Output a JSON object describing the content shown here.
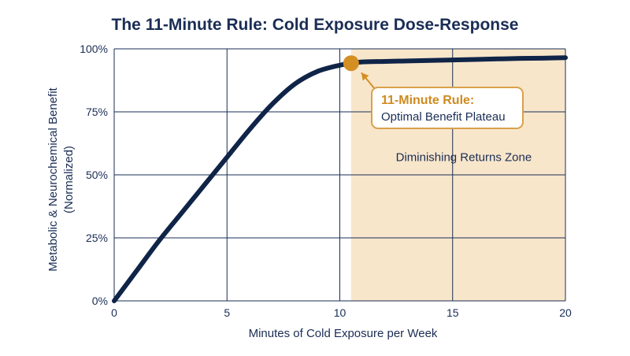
{
  "chart_data": {
    "type": "line",
    "title": "The 11-Minute Rule: Cold Exposure Dose-Response",
    "xlabel": "Minutes of Cold Exposure per Week",
    "ylabel_line1": "Metabolic & Neurochemical Benefit",
    "ylabel_line2": "(Normalized)",
    "xlim": [
      0,
      20
    ],
    "ylim": [
      0,
      100
    ],
    "x_ticks": [
      0,
      5,
      10,
      15,
      20
    ],
    "y_ticks": [
      0,
      25,
      50,
      75,
      100
    ],
    "x_tick_labels": [
      "0",
      "5",
      "10",
      "15",
      "20"
    ],
    "y_tick_labels": [
      "0%",
      "25%",
      "50%",
      "75%",
      "100%"
    ],
    "grid": true,
    "series": [
      {
        "x": [
          0,
          1,
          2,
          3,
          4,
          5,
          6,
          7,
          8,
          9,
          10,
          10.5,
          11,
          12,
          13,
          14,
          15,
          16,
          17,
          18,
          19,
          20
        ],
        "y": [
          0,
          12,
          24,
          35,
          46,
          57,
          68,
          78,
          86,
          91,
          93.5,
          94.3,
          94.8,
          95.0,
          95.2,
          95.4,
          95.6,
          95.8,
          96.0,
          96.2,
          96.3,
          96.5
        ]
      }
    ],
    "shaded_region": {
      "x_start": 10.5,
      "x_end": 20,
      "label": "Diminishing Returns Zone"
    },
    "highlight_point": {
      "x": 10.5,
      "y": 94.3
    },
    "annotation": {
      "title": "11-Minute Rule:",
      "text": "Optimal Benefit Plateau"
    },
    "colors": {
      "line": "#0f2447",
      "title": "#1a2d55",
      "grid": "#1a2d55",
      "shade": "#f8e6cb",
      "point": "#d48f23",
      "annotation_title": "#cf8a1f",
      "annotation_border": "#d9a04a",
      "text": "#1a2d55"
    }
  }
}
